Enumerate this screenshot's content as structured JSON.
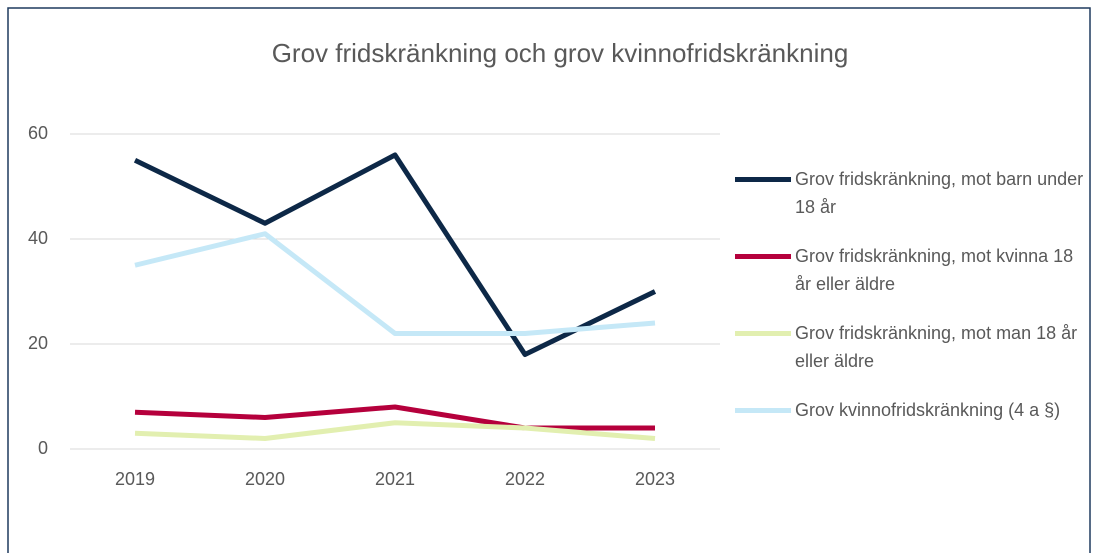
{
  "chart_data": {
    "type": "line",
    "title": "Grov fridskränkning och grov kvinnofridskränkning",
    "categories": [
      "2019",
      "2020",
      "2021",
      "2022",
      "2023"
    ],
    "series": [
      {
        "name": "Grov fridskränkning, mot barn under 18 år",
        "color": "#0d2847",
        "values": [
          55,
          43,
          56,
          18,
          30
        ]
      },
      {
        "name": "Grov fridskränkning, mot kvinna 18 år eller äldre",
        "color": "#b5003c",
        "values": [
          7,
          6,
          8,
          4,
          4
        ]
      },
      {
        "name": "Grov fridskränkning, mot man 18 år eller äldre",
        "color": "#e2efb0",
        "values": [
          3,
          2,
          5,
          4,
          2
        ]
      },
      {
        "name": "Grov kvinnofridskränkning (4 a §)",
        "color": "#c5e8f7",
        "values": [
          35,
          41,
          22,
          22,
          24
        ]
      }
    ],
    "ylim": [
      0,
      60
    ],
    "yticks": [
      0,
      20,
      40,
      60
    ],
    "grid": true,
    "legend": "right"
  }
}
